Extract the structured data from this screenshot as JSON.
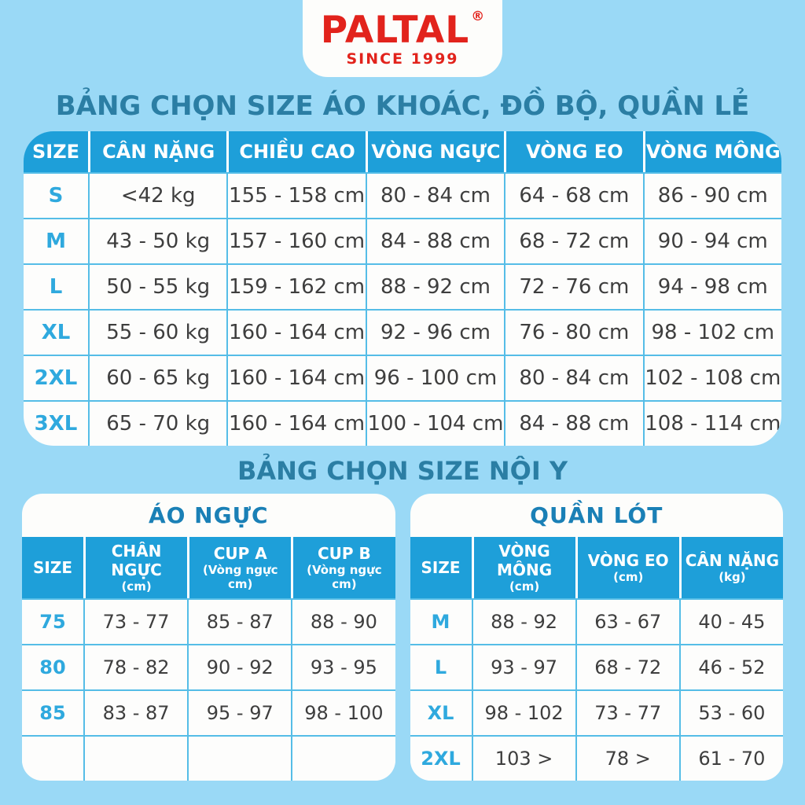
{
  "page": {
    "background_color": "#9AD9F6",
    "header_blue": "#1E9FD9",
    "size_label_color": "#2FA9DE",
    "section_title_color": "#2B7EA4",
    "sub_title_color": "#1A80B6",
    "logo_red": "#E2231C",
    "border_cyan": "#55BDE7"
  },
  "logo": {
    "brand": "PALTAL",
    "registered": "®",
    "tagline": "SINCE 1999"
  },
  "section1": {
    "title": "BẢNG CHỌN SIZE ÁO KHOÁC, ĐỒ BỘ, QUẦN LẺ",
    "table": {
      "headers": [
        "SIZE",
        "CÂN NẶNG",
        "CHIỀU CAO",
        "VÒNG NGỰC",
        "VÒNG EO",
        "VÒNG MÔNG"
      ],
      "rows": [
        [
          "S",
          "<42 kg",
          "155 - 158 cm",
          "80 - 84 cm",
          "64 - 68 cm",
          "86 - 90 cm"
        ],
        [
          "M",
          "43 - 50 kg",
          "157 - 160 cm",
          "84 - 88 cm",
          "68 - 72 cm",
          "90 - 94 cm"
        ],
        [
          "L",
          "50 - 55 kg",
          "159 - 162 cm",
          "88 - 92 cm",
          "72 - 76 cm",
          "94 - 98 cm"
        ],
        [
          "XL",
          "55 - 60 kg",
          "160 - 164 cm",
          "92 - 96 cm",
          "76 - 80 cm",
          "98 - 102 cm"
        ],
        [
          "2XL",
          "60 - 65 kg",
          "160 - 164 cm",
          "96 - 100 cm",
          "80 - 84 cm",
          "102 - 108 cm"
        ],
        [
          "3XL",
          "65 - 70 kg",
          "160 - 164 cm",
          "100 - 104 cm",
          "84 - 88 cm",
          "108 - 114 cm"
        ]
      ]
    }
  },
  "section2": {
    "title": "BẢNG CHỌN SIZE NỘI Y",
    "bra_table": {
      "title": "ÁO NGỰC",
      "headers": [
        {
          "label": "SIZE",
          "sub": ""
        },
        {
          "label": "CHÂN NGỰC",
          "sub": "(cm)"
        },
        {
          "label": "CUP A",
          "sub": "(Vòng ngực cm)"
        },
        {
          "label": "CUP B",
          "sub": "(Vòng ngực cm)"
        }
      ],
      "rows": [
        [
          "75",
          "73 - 77",
          "85 - 87",
          "88 - 90"
        ],
        [
          "80",
          "78 - 82",
          "90 - 92",
          "93 - 95"
        ],
        [
          "85",
          "83 - 87",
          "95 - 97",
          "98 - 100"
        ],
        [
          "",
          "",
          "",
          ""
        ]
      ]
    },
    "panty_table": {
      "title": "QUẦN LÓT",
      "headers": [
        {
          "label": "SIZE",
          "sub": ""
        },
        {
          "label": "VÒNG MÔNG",
          "sub": "(cm)"
        },
        {
          "label": "VÒNG EO",
          "sub": "(cm)"
        },
        {
          "label": "CÂN NẶNG",
          "sub": "(kg)"
        }
      ],
      "rows": [
        [
          "M",
          "88 - 92",
          "63 - 67",
          "40 - 45"
        ],
        [
          "L",
          "93 - 97",
          "68 - 72",
          "46 - 52"
        ],
        [
          "XL",
          "98 - 102",
          "73 - 77",
          "53 - 60"
        ],
        [
          "2XL",
          "103 >",
          "78 >",
          "61 - 70"
        ]
      ]
    }
  }
}
